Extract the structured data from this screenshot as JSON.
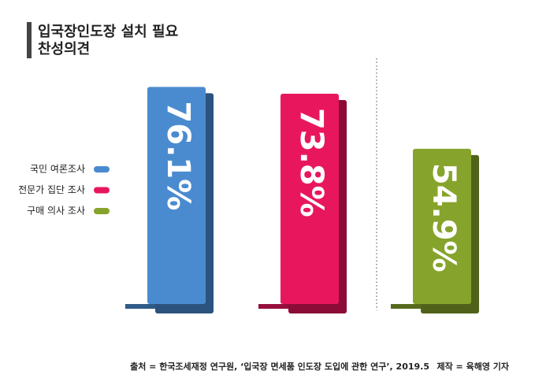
{
  "chart_data": {
    "type": "bar",
    "title": "입국장인도장 설치 필요",
    "subtitle": "찬성의견",
    "series": [
      {
        "name": "국민 여론조사",
        "color": "#4a8bd0",
        "values": [
          76.1
        ],
        "value_labels": [
          "76.1%"
        ]
      },
      {
        "name": "전문가 집단 조사",
        "color": "#e8175d",
        "values": [
          73.8
        ],
        "value_labels": [
          "73.8%"
        ]
      },
      {
        "name": "구매 의사 조사",
        "color": "#86a42b",
        "values": [
          54.9
        ],
        "value_labels": [
          "54.9%"
        ]
      }
    ],
    "source": "출처 = 한국조세재정 연구원, ‘입국장 면세품 인도장 도입에 관한 연구’, 2019.5",
    "credit": "제작 = 육해영 기자"
  }
}
